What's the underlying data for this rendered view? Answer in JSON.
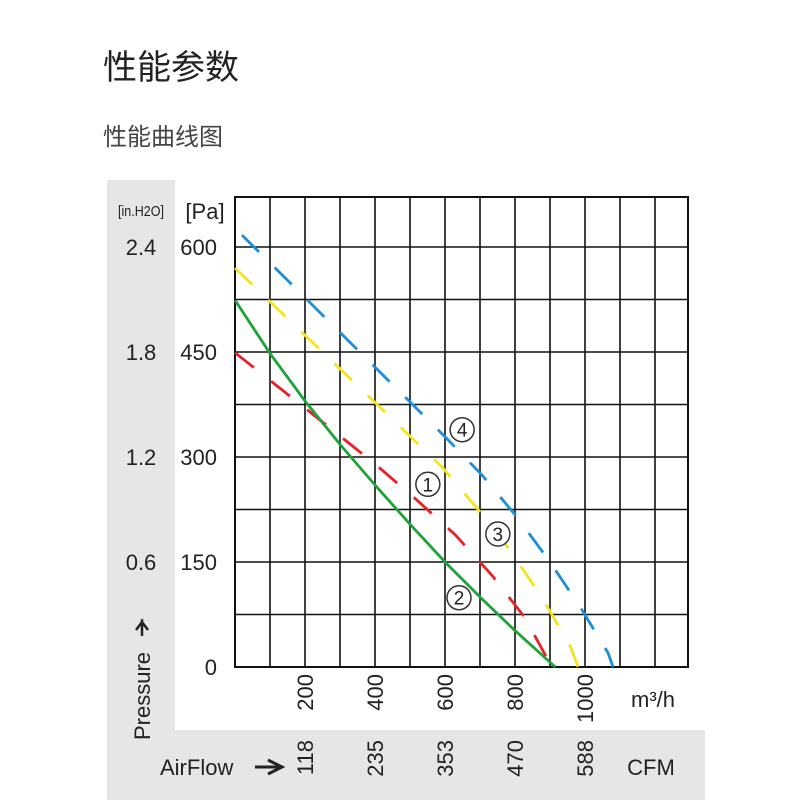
{
  "page": {
    "title": "性能参数",
    "subtitle": "性能曲线图"
  },
  "chart_data": {
    "type": "line",
    "title": "",
    "xlabel": "AirFlow",
    "x_unit": "m³/h",
    "x_unit_secondary": "CFM",
    "ylabel": "Pressure",
    "y_unit": "[Pa]",
    "y_unit_secondary": "[in.H2O]",
    "xlim": [
      0,
      1300
    ],
    "ylim": [
      0,
      675
    ],
    "grid": true,
    "x_ticks": [
      200,
      400,
      600,
      800,
      1000
    ],
    "x_tick_labels": [
      "200",
      "400",
      "600",
      "800",
      "1000"
    ],
    "x_ticks_secondary": [
      "118",
      "235",
      "353",
      "470",
      "588"
    ],
    "y_ticks": [
      0,
      150,
      300,
      450,
      600
    ],
    "y_tick_labels": [
      "0",
      "150",
      "300",
      "450",
      "600"
    ],
    "y_ticks_secondary": [
      "",
      "0.6",
      "1.2",
      "1.8",
      "2.4"
    ],
    "series": [
      {
        "label": "①",
        "color": "#e8202a",
        "style": "dashed",
        "x": [
          0,
          200,
          400,
          514,
          629,
          734,
          829,
          905
        ],
        "y": [
          449,
          370,
          290,
          241,
          189,
          131,
          70,
          0
        ],
        "label_at": [
          551,
          261
        ]
      },
      {
        "label": "②",
        "color": "#1fa23a",
        "style": "solid",
        "x": [
          0,
          100,
          200,
          300,
          400,
          500,
          600,
          700,
          800,
          915
        ],
        "y": [
          524,
          448,
          380,
          318,
          260,
          204,
          150,
          100,
          52,
          0
        ],
        "label_at": [
          640,
          99
        ]
      },
      {
        "label": "③",
        "color": "#f5e31c",
        "style": "dashed",
        "x": [
          0,
          300,
          591,
          691,
          791,
          877,
          957,
          980
        ],
        "y": [
          570,
          426,
          286,
          227,
          163,
          99,
          31,
          0
        ],
        "label_at": [
          751,
          190
        ]
      },
      {
        "label": "④",
        "color": "#1c8fd6",
        "style": "dashed",
        "x": [
          20,
          300,
          600,
          706,
          806,
          900,
          986,
          1066,
          1080
        ],
        "y": [
          617,
          478,
          329,
          274,
          214,
          150,
          86,
          20,
          0
        ],
        "label_at": [
          649,
          339
        ]
      }
    ]
  }
}
